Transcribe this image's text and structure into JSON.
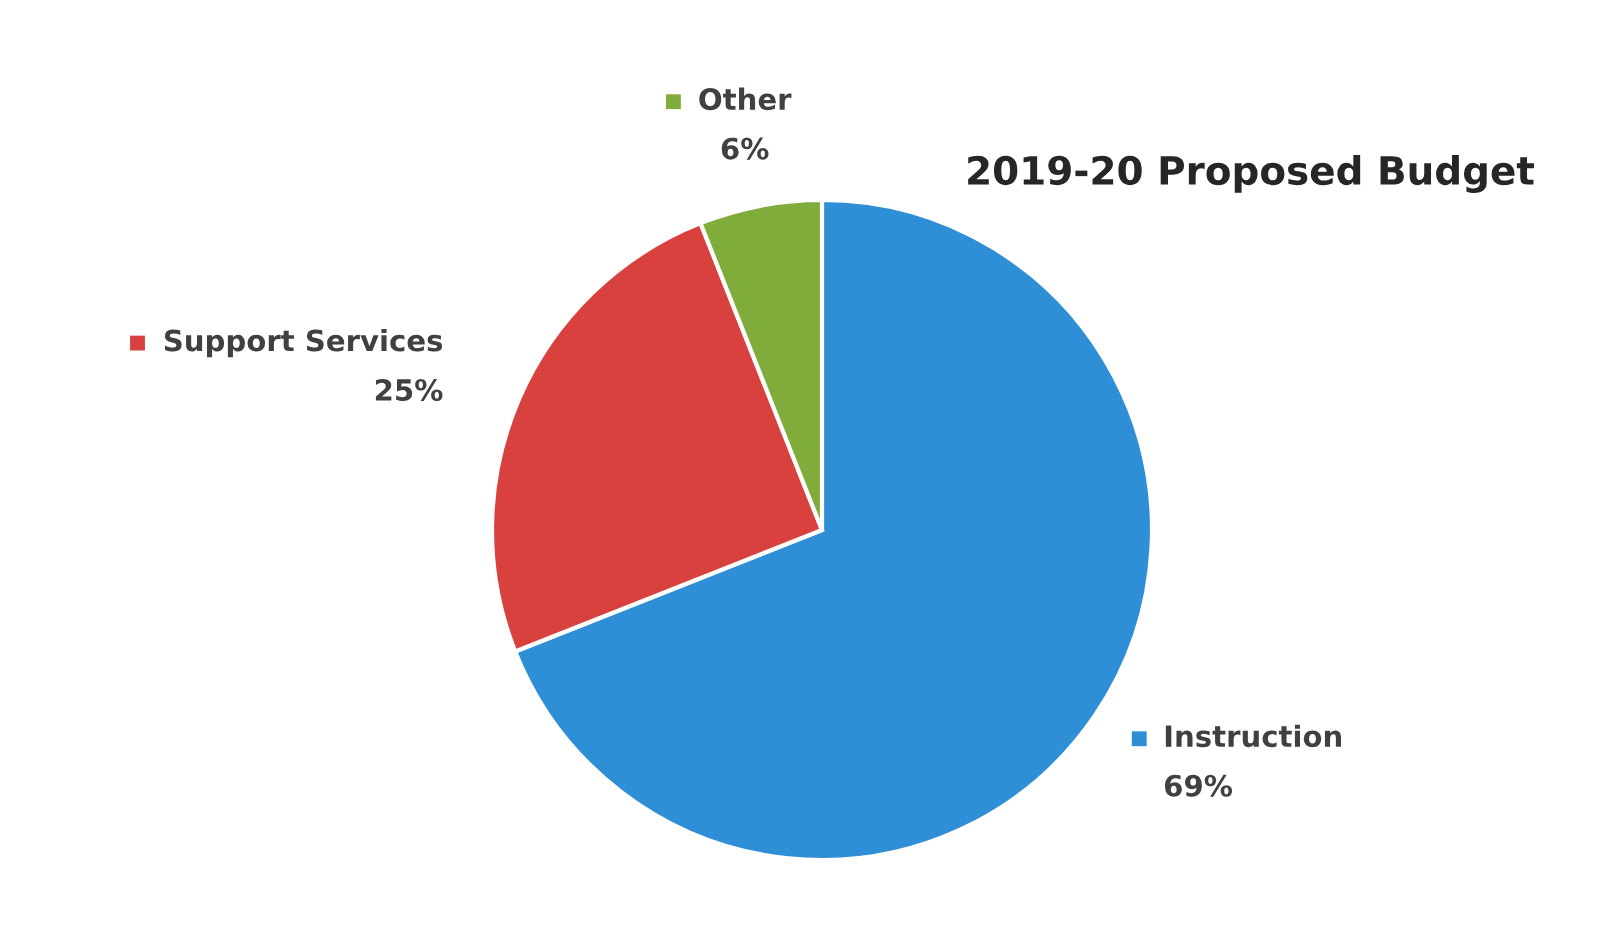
{
  "chart_data": {
    "type": "pie",
    "title": "2019-20 Proposed Budget",
    "categories": [
      "Instruction",
      "Support Services",
      "Other"
    ],
    "values": [
      69,
      25,
      6
    ],
    "colors": [
      "#2e8fd6",
      "#d9413f",
      "#7fac3a"
    ],
    "value_labels": [
      "69%",
      "25%",
      "6%"
    ],
    "legend": "top left"
  }
}
